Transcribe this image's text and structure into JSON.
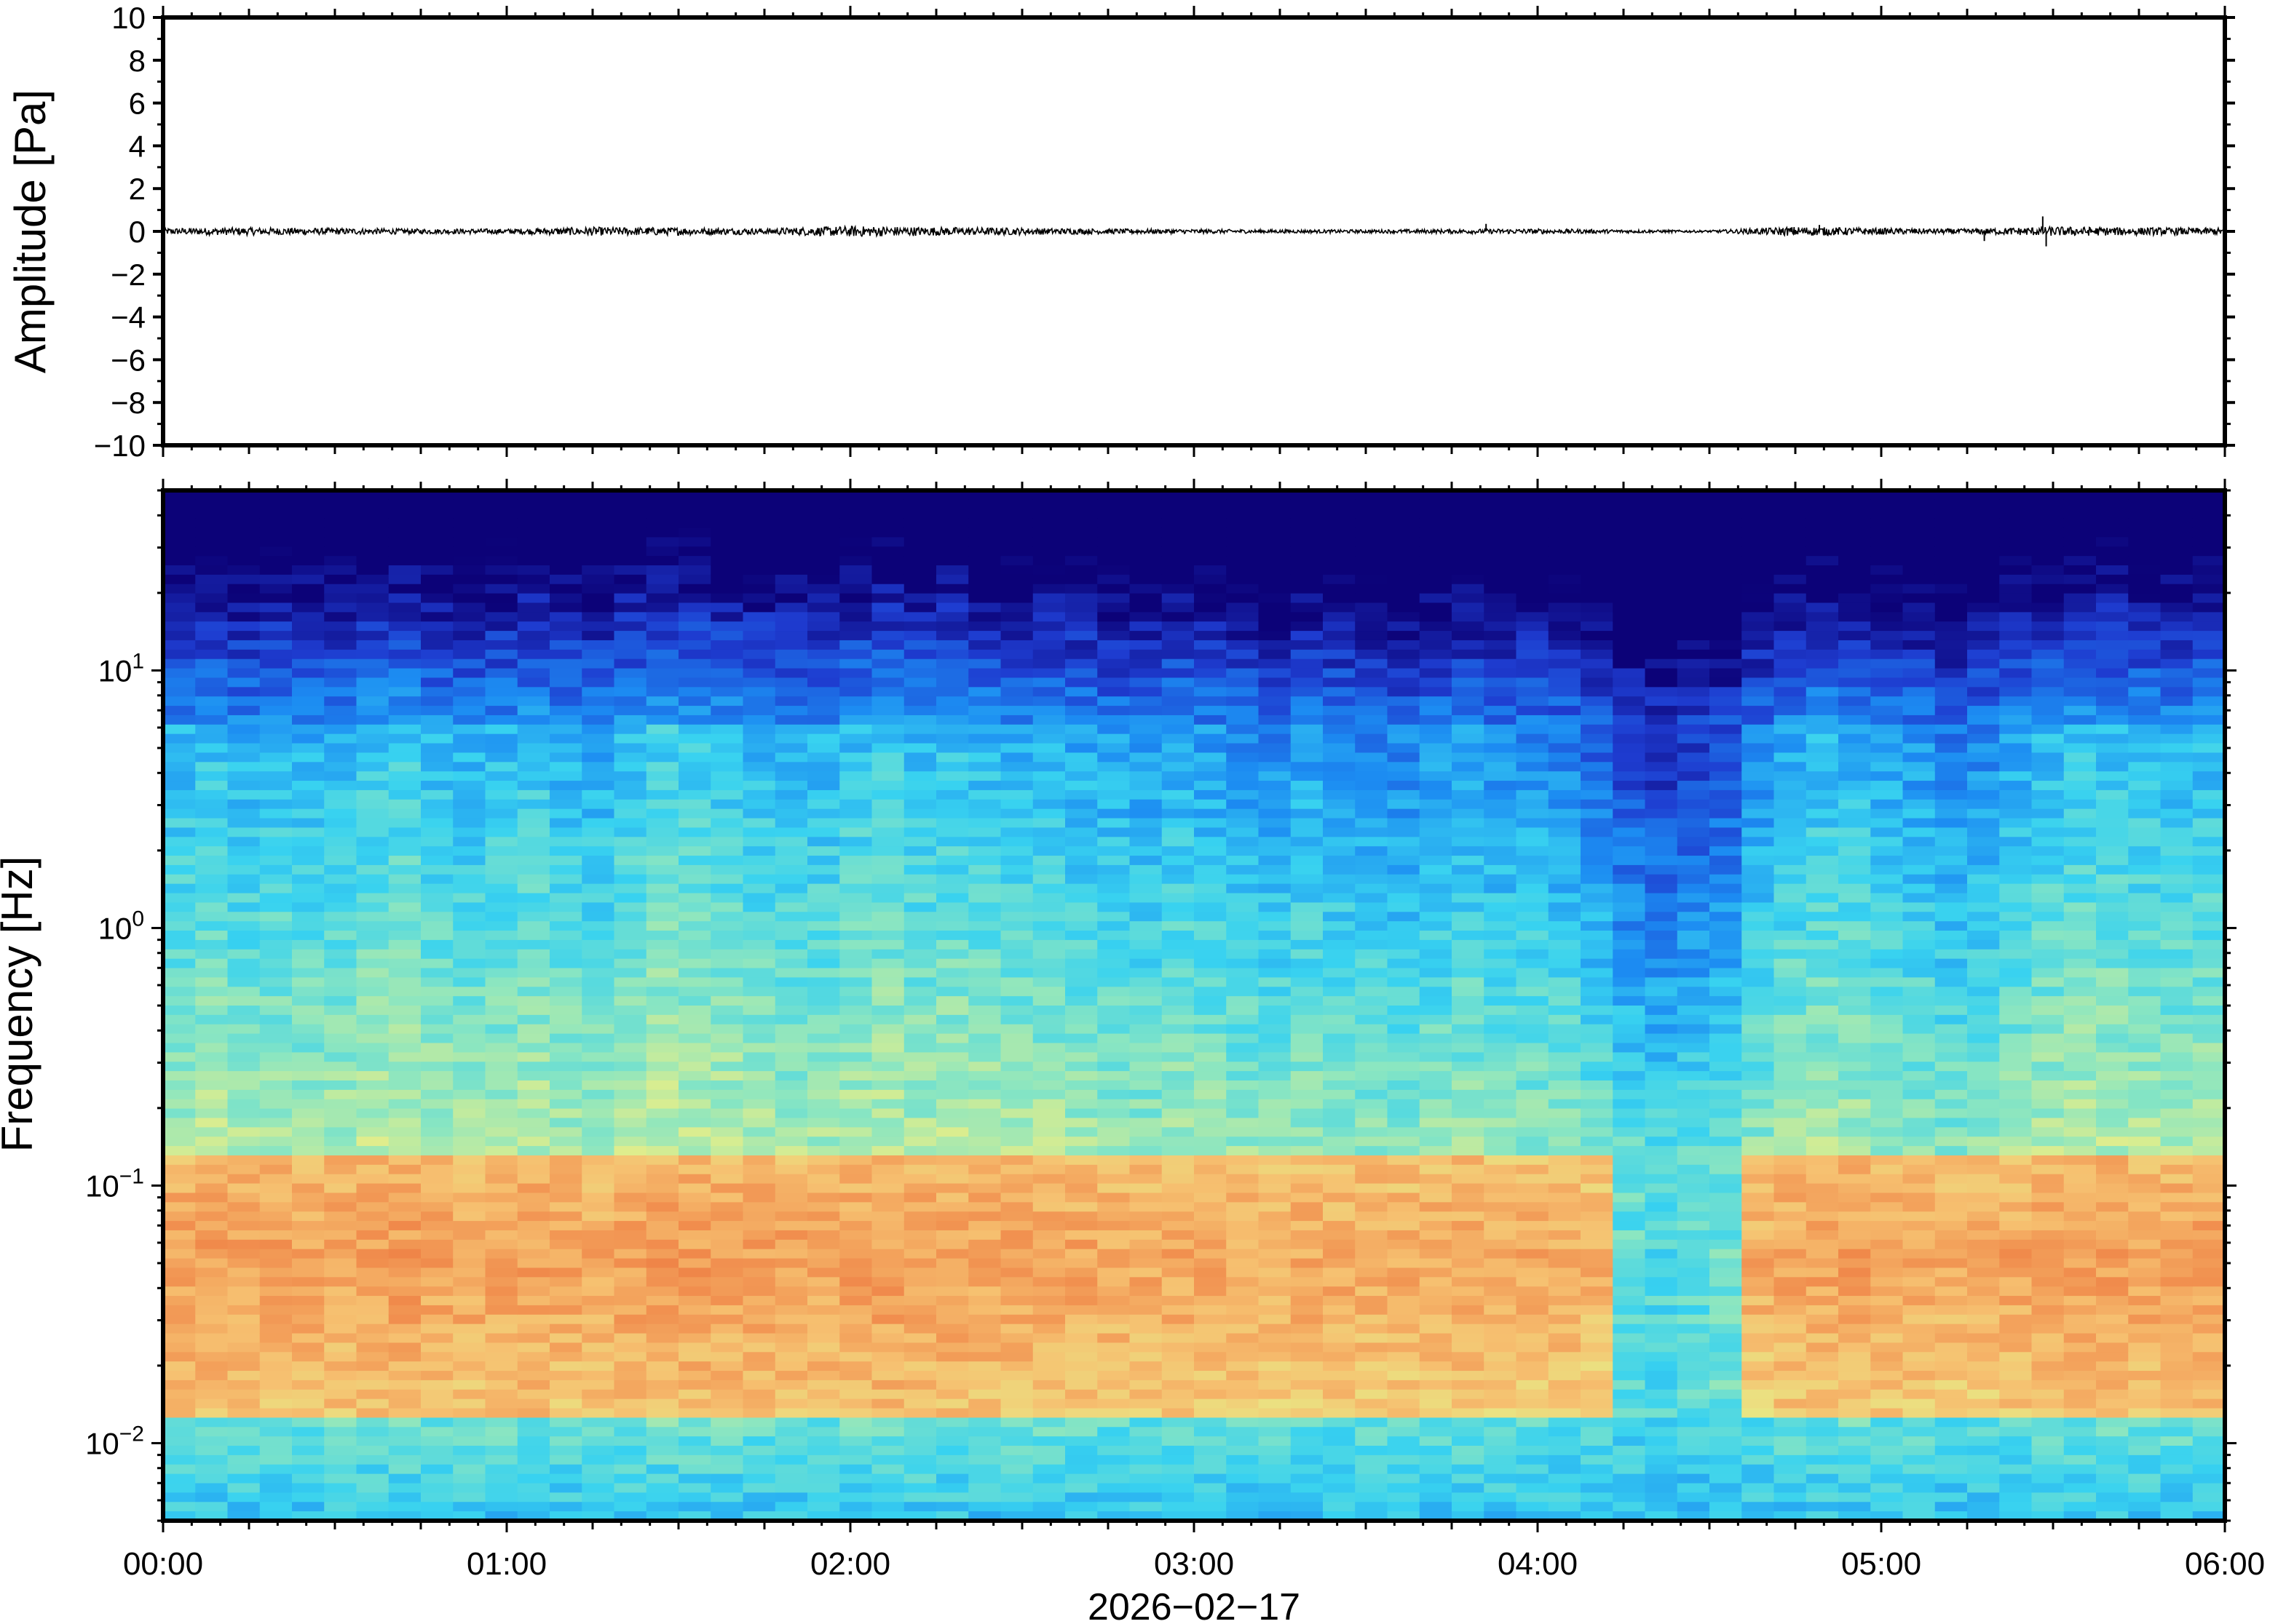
{
  "chart_data": [
    {
      "type": "line",
      "ylabel": "Amplitude [Pa]",
      "ylim": [
        -10,
        10
      ],
      "yticks": [
        "10",
        "8",
        "6",
        "4",
        "2",
        "0",
        "−2",
        "−4",
        "−6",
        "−8",
        "−10"
      ],
      "ytick_values": [
        10,
        8,
        6,
        4,
        2,
        0,
        -2,
        -4,
        -6,
        -8,
        -10
      ],
      "xlim_hours": [
        0,
        6
      ],
      "series": [
        {
          "color": "#000000",
          "x_hours": [
            0.0,
            0.25,
            0.5,
            0.75,
            1.0,
            1.25,
            1.5,
            1.75,
            2.0,
            2.25,
            2.5,
            2.75,
            3.0,
            3.25,
            3.5,
            3.75,
            4.0,
            4.25,
            4.5,
            4.75,
            5.0,
            5.25,
            5.5,
            5.75,
            6.0
          ],
          "envelope_pa": [
            0.15,
            0.18,
            0.15,
            0.12,
            0.12,
            0.2,
            0.18,
            0.14,
            0.25,
            0.2,
            0.16,
            0.12,
            0.1,
            0.08,
            0.08,
            0.1,
            0.12,
            0.08,
            0.05,
            0.22,
            0.15,
            0.12,
            0.22,
            0.18,
            0.16
          ],
          "spikes": [
            {
              "x_hour": 3.85,
              "value": 0.35
            },
            {
              "x_hour": 4.82,
              "value": 0.3
            },
            {
              "x_hour": 5.3,
              "value": -0.45
            },
            {
              "x_hour": 5.47,
              "value": 0.7
            },
            {
              "x_hour": 5.48,
              "value": -0.7
            }
          ]
        }
      ]
    },
    {
      "type": "heatmap",
      "ylabel": "Frequency [Hz]",
      "xlabel": "2026−02−17",
      "y_scale": "log",
      "ylim_hz": [
        0.005,
        50
      ],
      "yticks": [
        {
          "value": 10,
          "base": "10",
          "exp": "1"
        },
        {
          "value": 1,
          "base": "10",
          "exp": "0"
        },
        {
          "value": 0.1,
          "base": "10",
          "exp": "−1"
        },
        {
          "value": 0.01,
          "base": "10",
          "exp": "−2"
        }
      ],
      "xticks": [
        "00:00",
        "01:00",
        "02:00",
        "03:00",
        "04:00",
        "05:00",
        "06:00"
      ],
      "xtick_values_hours": [
        0,
        1,
        2,
        3,
        4,
        5,
        6
      ],
      "colormap": [
        "#0c0278",
        "#1e3cd0",
        "#1c8cf2",
        "#38d2f0",
        "#8ce6c0",
        "#e6ee88",
        "#f6c070",
        "#f0884a",
        "#e0542a"
      ],
      "mid_frequency_variation": [
        0.52,
        0.55,
        0.5,
        0.52,
        0.5,
        0.5,
        0.56,
        0.58,
        0.52,
        0.5,
        0.52,
        0.55,
        0.5,
        0.48,
        0.55,
        0.6,
        0.58,
        0.55,
        0.52,
        0.5,
        0.5,
        0.55,
        0.58,
        0.52,
        0.55,
        0.52,
        0.5,
        0.5,
        0.48,
        0.45,
        0.42,
        0.48,
        0.45,
        0.42,
        0.4,
        0.45,
        0.42,
        0.4,
        0.38,
        0.42,
        0.45,
        0.4,
        0.4,
        0.38,
        0.3,
        0.2,
        0.15,
        0.18,
        0.22,
        0.38,
        0.48,
        0.52,
        0.5,
        0.45,
        0.42,
        0.36,
        0.4,
        0.48,
        0.52,
        0.55,
        0.55,
        0.52,
        0.5,
        0.52
      ]
    }
  ]
}
